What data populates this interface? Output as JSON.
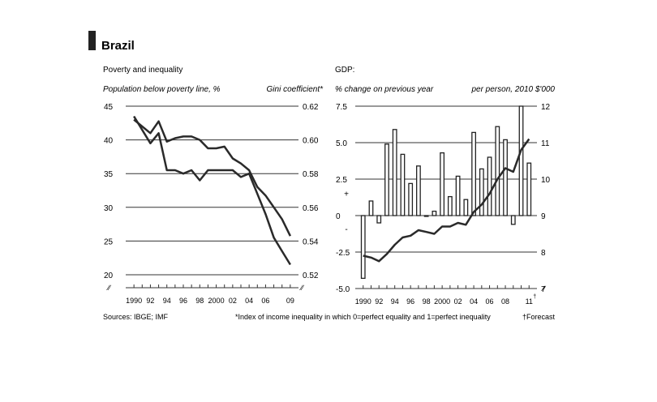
{
  "figure_title": "Brazil",
  "footer": {
    "sources": "Sources: IBGE; IMF",
    "note": "*Index of income inequality in which 0=perfect equality and 1=perfect inequality",
    "forecast": "†Forecast"
  },
  "chart_data": [
    {
      "type": "line",
      "title": "Poverty and inequality",
      "ylabel_left": "Population below poverty line, %",
      "ylabel_right": "Gini coefficient*",
      "x_ticks": [
        "1990",
        "92",
        "94",
        "96",
        "98",
        "2000",
        "02",
        "04",
        "06",
        "09"
      ],
      "xlim": [
        1989,
        2010
      ],
      "y_left_ticks": [
        "20",
        "25",
        "30",
        "35",
        "40",
        "45"
      ],
      "y_left_range": [
        20,
        45
      ],
      "y_right_ticks": [
        "0.52",
        "0.54",
        "0.56",
        "0.58",
        "0.60",
        "0.62"
      ],
      "y_right_range": [
        0.52,
        0.62
      ],
      "grid": true,
      "series": [
        {
          "axis": "left",
          "x": [
            1990,
            1992,
            1993,
            1994,
            1995,
            1996,
            1997,
            1998,
            1999,
            2000,
            2001,
            2002,
            2003,
            2004,
            2005,
            2006,
            2007,
            2008,
            2009
          ],
          "values": [
            43.5,
            39.5,
            41.0,
            35.5,
            35.5,
            35.0,
            35.5,
            34.0,
            35.5,
            35.5,
            35.5,
            35.5,
            34.5,
            35.0,
            32.0,
            29.0,
            25.5,
            23.5,
            21.5
          ]
        },
        {
          "axis": "right",
          "x": [
            1990,
            1992,
            1993,
            1994,
            1995,
            1996,
            1997,
            1998,
            1999,
            2000,
            2001,
            2002,
            2003,
            2004,
            2005,
            2006,
            2007,
            2008,
            2009
          ],
          "values": [
            0.612,
            0.604,
            0.611,
            0.599,
            0.601,
            0.602,
            0.602,
            0.6,
            0.595,
            0.595,
            0.596,
            0.589,
            0.586,
            0.582,
            0.572,
            0.567,
            0.56,
            0.553,
            0.543
          ]
        }
      ]
    },
    {
      "type": "bar",
      "title": "GDP:",
      "ylabel_left": "% change on previous year",
      "ylabel_right": "per person, 2010 $'000",
      "x_ticks": [
        "1990",
        "92",
        "94",
        "96",
        "98",
        "2000",
        "02",
        "04",
        "06",
        "08",
        "11"
      ],
      "forecast_mark": "†",
      "xlim": [
        1989,
        2012
      ],
      "y_left_ticks": [
        "-5.0",
        "-2.5",
        "0",
        "2.5",
        "5.0",
        "7.5"
      ],
      "y_left_range": [
        -5,
        7.5
      ],
      "y_right_ticks": [
        "7",
        "8",
        "9",
        "10",
        "11",
        "12"
      ],
      "y_right_range": [
        7,
        12
      ],
      "sign_labels": [
        "+",
        "-"
      ],
      "grid": true,
      "bars": {
        "axis": "left",
        "categories": [
          1990,
          1991,
          1992,
          1993,
          1994,
          1995,
          1996,
          1997,
          1998,
          1999,
          2000,
          2001,
          2002,
          2003,
          2004,
          2005,
          2006,
          2007,
          2008,
          2009,
          2010,
          2011
        ],
        "values": [
          -4.3,
          1.0,
          -0.5,
          4.9,
          5.9,
          4.2,
          2.2,
          3.4,
          0.0,
          0.3,
          4.3,
          1.3,
          2.7,
          1.1,
          5.7,
          3.2,
          4.0,
          6.1,
          5.2,
          -0.6,
          7.5,
          3.6
        ]
      },
      "line": {
        "axis": "right",
        "x": [
          1990,
          1991,
          1992,
          1993,
          1994,
          1995,
          1996,
          1997,
          1998,
          1999,
          2000,
          2001,
          2002,
          2003,
          2004,
          2005,
          2006,
          2007,
          2008,
          2009,
          2010,
          2011
        ],
        "values": [
          7.9,
          7.85,
          7.75,
          7.95,
          8.2,
          8.4,
          8.45,
          8.6,
          8.55,
          8.5,
          8.7,
          8.7,
          8.8,
          8.75,
          9.1,
          9.3,
          9.6,
          10.0,
          10.3,
          10.2,
          10.8,
          11.1
        ]
      }
    }
  ]
}
